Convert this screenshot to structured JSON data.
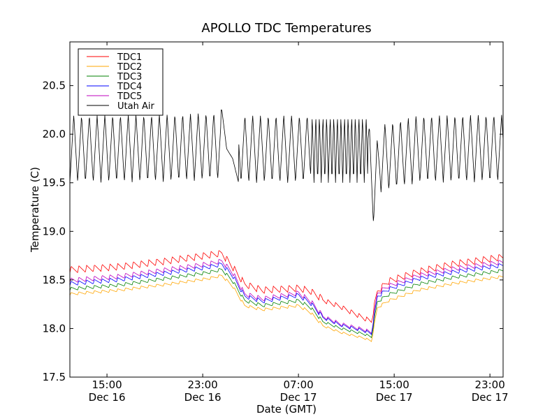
{
  "chart_data": {
    "type": "line",
    "title": "APOLLO TDC Temperatures",
    "xlabel": "Date (GMT)",
    "ylabel": "Temperature (C)",
    "x_units": "hours since 00:00 Dec 16 (GMT)",
    "xlim": [
      11.9,
      48.1
    ],
    "ylim": [
      17.5,
      20.95
    ],
    "grid": false,
    "legend_position": "top-left",
    "yticks": [
      17.5,
      18.0,
      18.5,
      19.0,
      19.5,
      20.0,
      20.5
    ],
    "ytick_labels": [
      "17.5",
      "18.0",
      "18.5",
      "19.0",
      "19.5",
      "20.0",
      "20.5"
    ],
    "xticks": [
      15,
      23,
      31,
      39,
      47
    ],
    "xtick_labels": [
      [
        "15:00",
        "Dec 16"
      ],
      [
        "23:00",
        "Dec 16"
      ],
      [
        "07:00",
        "Dec 17"
      ],
      [
        "15:00",
        "Dec 17"
      ],
      [
        "23:00",
        "Dec 17"
      ]
    ],
    "series": [
      {
        "name": "TDC1",
        "color": "#ff0000",
        "oscillation": {
          "period_hours": 0.65,
          "amplitude": 0.07
        },
        "baseline": [
          [
            11.9,
            18.57
          ],
          [
            16,
            18.6
          ],
          [
            20,
            18.66
          ],
          [
            23.5,
            18.72
          ],
          [
            24.6,
            18.74
          ],
          [
            25.5,
            18.6
          ],
          [
            26.5,
            18.42
          ],
          [
            28,
            18.36
          ],
          [
            31,
            18.38
          ],
          [
            32,
            18.35
          ],
          [
            33,
            18.27
          ],
          [
            34.5,
            18.2
          ],
          [
            36.5,
            18.08
          ],
          [
            37.1,
            18.05
          ],
          [
            37.6,
            18.35
          ],
          [
            38.5,
            18.45
          ],
          [
            41,
            18.55
          ],
          [
            44,
            18.63
          ],
          [
            48.1,
            18.7
          ]
        ]
      },
      {
        "name": "TDC2",
        "color": "#ffa500",
        "oscillation": {
          "period_hours": 0.65,
          "amplitude": 0.03
        },
        "baseline": [
          [
            11.9,
            18.34
          ],
          [
            16,
            18.38
          ],
          [
            20,
            18.44
          ],
          [
            23.5,
            18.5
          ],
          [
            24.6,
            18.53
          ],
          [
            25.5,
            18.42
          ],
          [
            26.5,
            18.22
          ],
          [
            28,
            18.18
          ],
          [
            31,
            18.22
          ],
          [
            32,
            18.15
          ],
          [
            33,
            18.02
          ],
          [
            34.5,
            17.95
          ],
          [
            36.5,
            17.89
          ],
          [
            37.1,
            17.86
          ],
          [
            37.6,
            18.2
          ],
          [
            38.5,
            18.27
          ],
          [
            41,
            18.38
          ],
          [
            44,
            18.45
          ],
          [
            48.1,
            18.52
          ]
        ]
      },
      {
        "name": "TDC3",
        "color": "#008000",
        "oscillation": {
          "period_hours": 0.65,
          "amplitude": 0.035
        },
        "baseline": [
          [
            11.9,
            18.39
          ],
          [
            16,
            18.43
          ],
          [
            20,
            18.5
          ],
          [
            23.5,
            18.56
          ],
          [
            24.6,
            18.59
          ],
          [
            25.5,
            18.47
          ],
          [
            26.5,
            18.27
          ],
          [
            28,
            18.22
          ],
          [
            31,
            18.27
          ],
          [
            32,
            18.2
          ],
          [
            33,
            18.06
          ],
          [
            34.5,
            17.99
          ],
          [
            36.5,
            17.93
          ],
          [
            37.1,
            17.9
          ],
          [
            37.6,
            18.26
          ],
          [
            38.5,
            18.33
          ],
          [
            41,
            18.44
          ],
          [
            44,
            18.51
          ],
          [
            48.1,
            18.58
          ]
        ]
      },
      {
        "name": "TDC4",
        "color": "#0000ff",
        "oscillation": {
          "period_hours": 0.65,
          "amplitude": 0.045
        },
        "baseline": [
          [
            11.9,
            18.44
          ],
          [
            16,
            18.48
          ],
          [
            20,
            18.55
          ],
          [
            23.5,
            18.61
          ],
          [
            24.6,
            18.64
          ],
          [
            25.5,
            18.52
          ],
          [
            26.5,
            18.31
          ],
          [
            28,
            18.26
          ],
          [
            31,
            18.32
          ],
          [
            32,
            18.24
          ],
          [
            33,
            18.1
          ],
          [
            34.5,
            18.02
          ],
          [
            36.5,
            17.96
          ],
          [
            37.1,
            17.93
          ],
          [
            37.6,
            18.31
          ],
          [
            38.5,
            18.38
          ],
          [
            41,
            18.49
          ],
          [
            44,
            18.56
          ],
          [
            48.1,
            18.63
          ]
        ]
      },
      {
        "name": "TDC5",
        "color": "#bf00bf",
        "oscillation": {
          "period_hours": 0.65,
          "amplitude": 0.05
        },
        "baseline": [
          [
            11.9,
            18.47
          ],
          [
            16,
            18.51
          ],
          [
            20,
            18.58
          ],
          [
            23.5,
            18.64
          ],
          [
            24.6,
            18.67
          ],
          [
            25.5,
            18.55
          ],
          [
            26.5,
            18.33
          ],
          [
            28,
            18.28
          ],
          [
            31,
            18.34
          ],
          [
            32,
            18.26
          ],
          [
            33,
            18.11
          ],
          [
            34.5,
            18.03
          ],
          [
            36.5,
            17.97
          ],
          [
            37.1,
            17.94
          ],
          [
            37.6,
            18.34
          ],
          [
            38.5,
            18.41
          ],
          [
            41,
            18.52
          ],
          [
            44,
            18.59
          ],
          [
            48.1,
            18.66
          ]
        ]
      },
      {
        "name": "Utah Air",
        "color": "#000000",
        "oscillation": {
          "period_hours": 0.65,
          "amplitude": 0.35
        },
        "irregular": [
          [
            24.6,
            20.25
          ],
          [
            25.0,
            19.85
          ],
          [
            25.5,
            19.75
          ],
          [
            26.0,
            19.5
          ]
        ],
        "baseline": [
          [
            11.9,
            19.85
          ],
          [
            20,
            19.86
          ],
          [
            24.2,
            19.88
          ],
          [
            26.5,
            19.85
          ],
          [
            31,
            19.85
          ],
          [
            36.8,
            19.85
          ],
          [
            37.3,
            19.4
          ],
          [
            37.8,
            19.75
          ],
          [
            41,
            19.85
          ],
          [
            48.1,
            19.86
          ]
        ]
      }
    ]
  }
}
